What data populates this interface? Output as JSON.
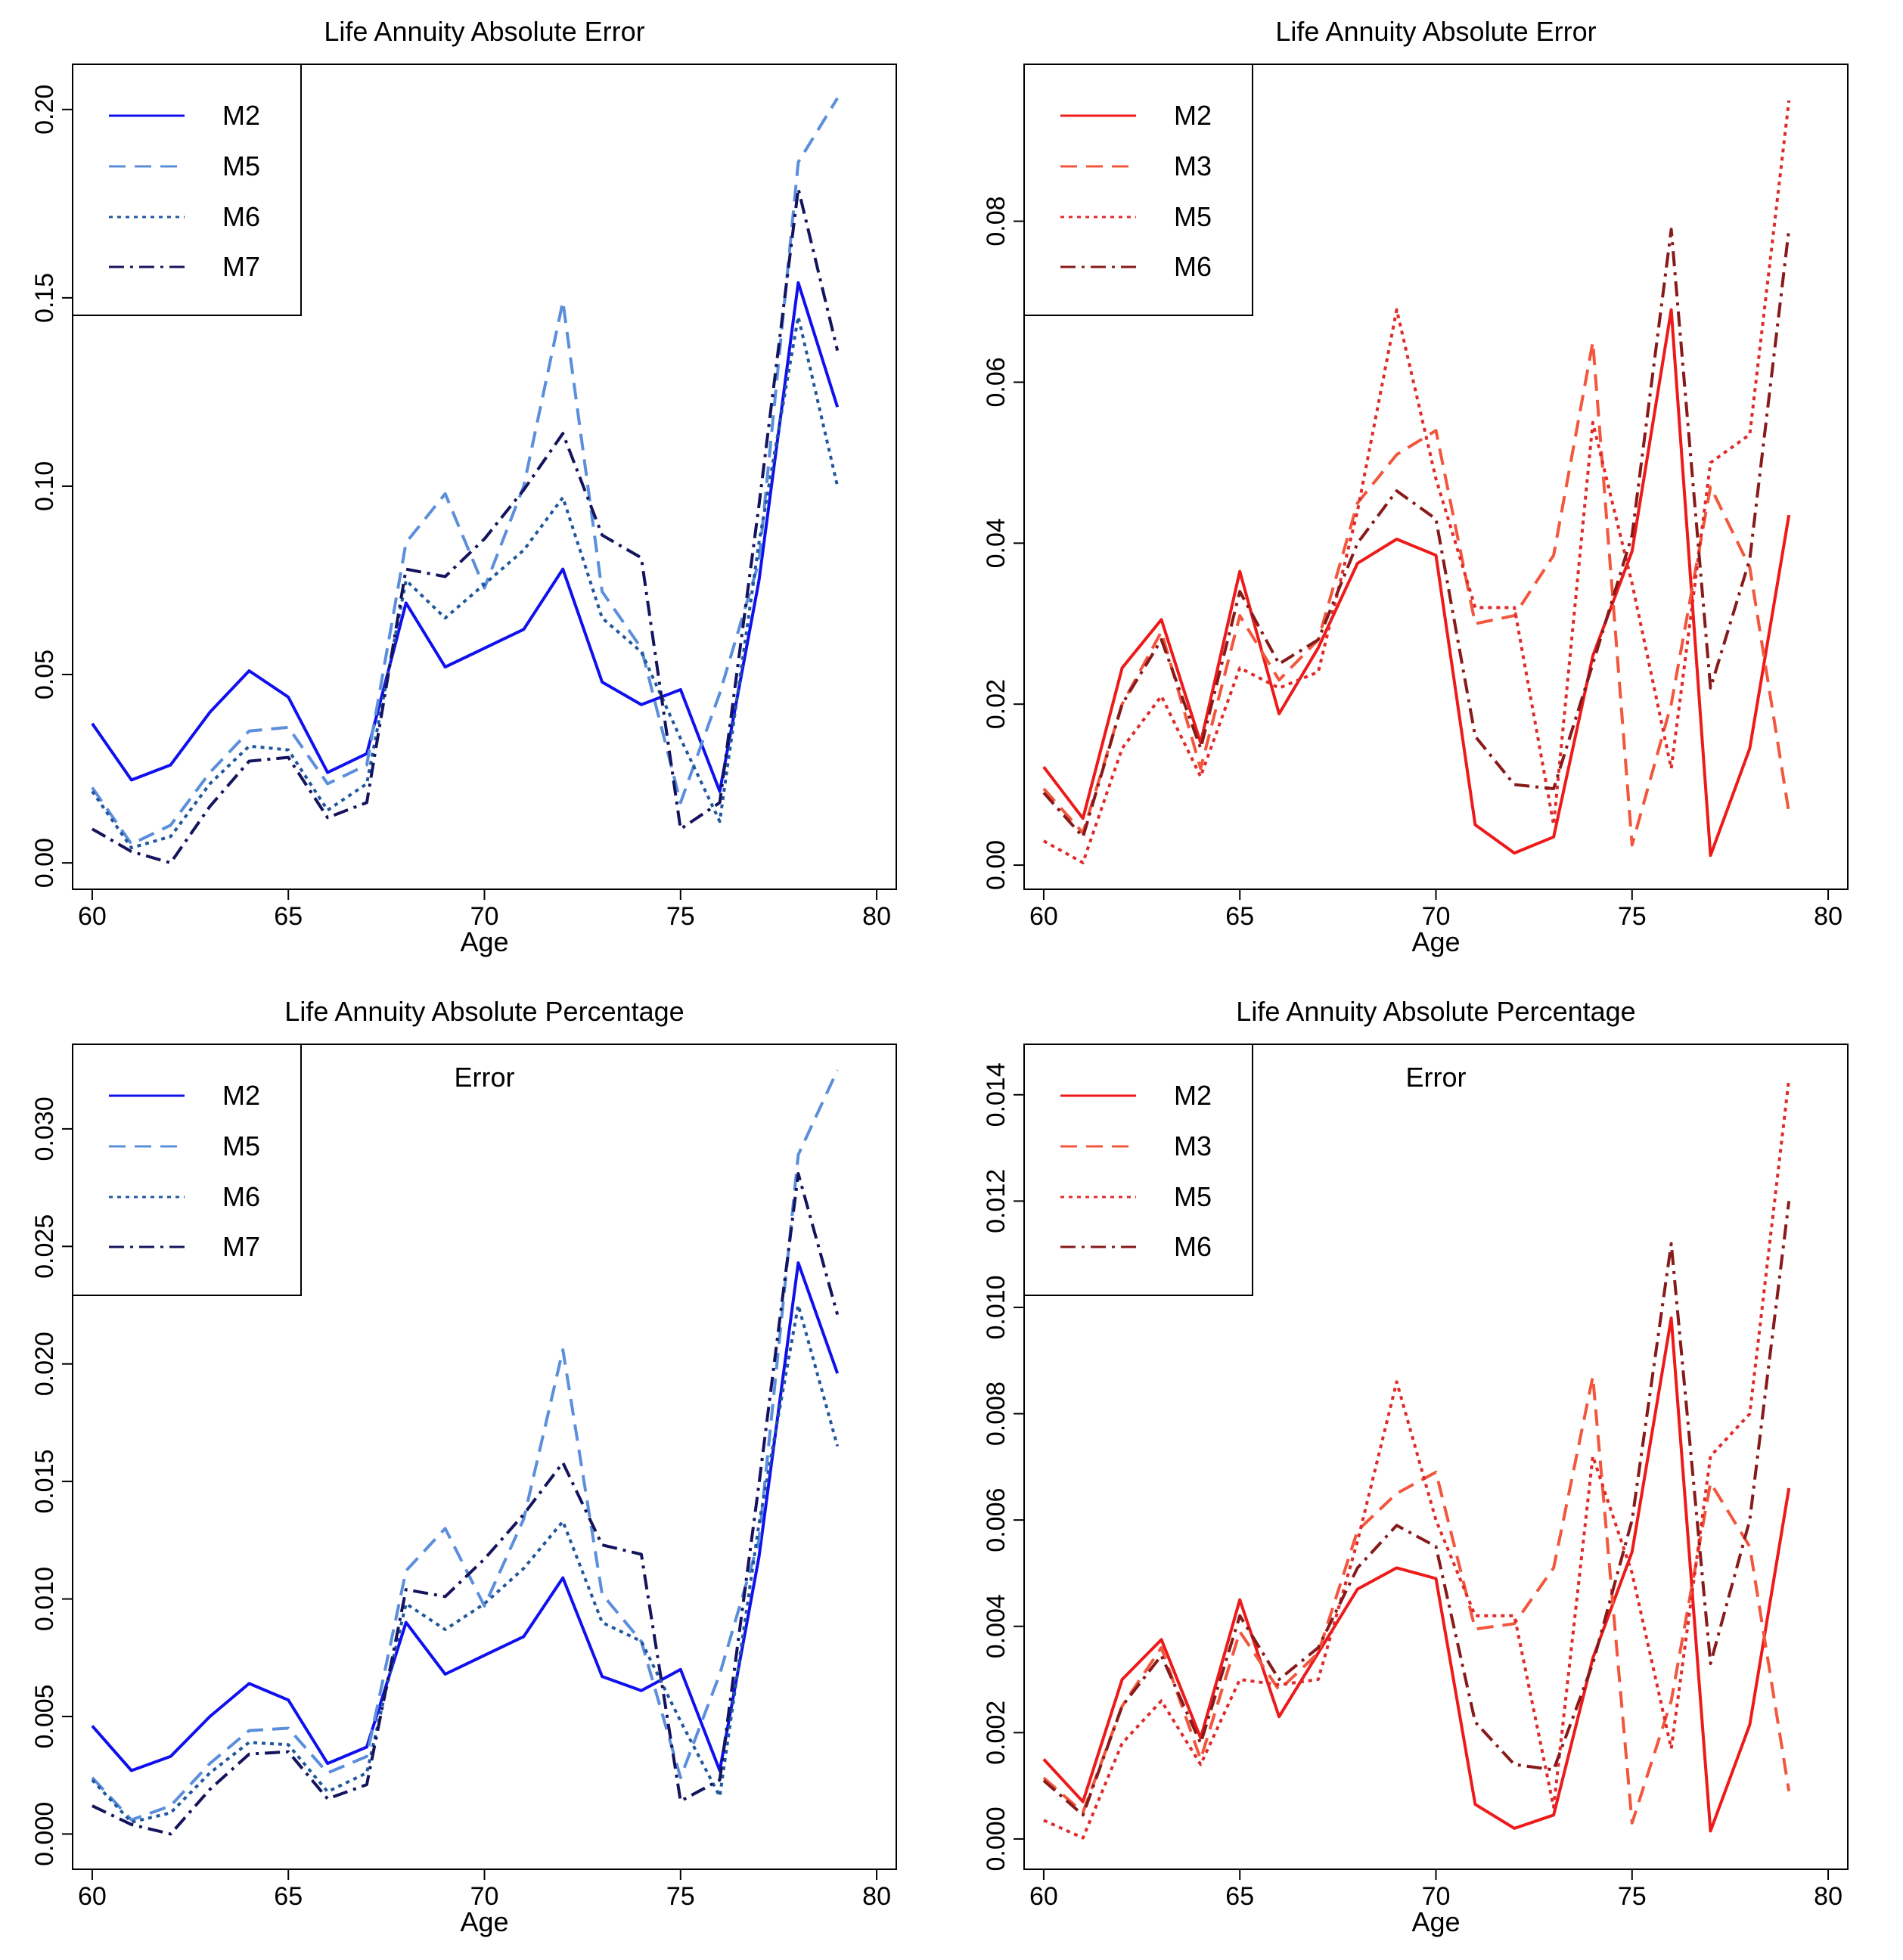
{
  "chart_data": [
    {
      "type": "line",
      "title": "Life Annuity Absolute Error",
      "subtitle": "",
      "xlabel": "Age",
      "ylabel": "",
      "xlim": [
        59.5,
        80.5
      ],
      "ylim": [
        -0.007,
        0.212
      ],
      "xticks": [
        60,
        65,
        70,
        75,
        80
      ],
      "yticks": [
        0.0,
        0.05,
        0.1,
        0.15,
        0.2
      ],
      "ytick_labels": [
        "0.00",
        "0.05",
        "0.10",
        "0.15",
        "0.20"
      ],
      "legend_position": "top-left",
      "x": [
        60,
        61,
        62,
        63,
        64,
        65,
        66,
        67,
        68,
        69,
        70,
        71,
        72,
        73,
        74,
        75,
        76,
        77,
        78,
        79
      ],
      "series": [
        {
          "name": "M2",
          "color": "#1010ee",
          "style": "solid",
          "values": [
            0.037,
            0.022,
            0.026,
            0.04,
            0.051,
            0.044,
            0.024,
            0.029,
            0.069,
            0.052,
            0.057,
            0.062,
            0.078,
            0.048,
            0.042,
            0.046,
            0.019,
            0.075,
            0.154,
            0.121
          ]
        },
        {
          "name": "M5",
          "color": "#5b8fdb",
          "style": "dashed",
          "values": [
            0.02,
            0.005,
            0.01,
            0.024,
            0.035,
            0.036,
            0.021,
            0.026,
            0.085,
            0.098,
            0.073,
            0.1,
            0.149,
            0.072,
            0.057,
            0.016,
            0.045,
            0.08,
            0.186,
            0.203
          ]
        },
        {
          "name": "M6",
          "color": "#20579c",
          "style": "dotted",
          "values": [
            0.019,
            0.004,
            0.007,
            0.021,
            0.031,
            0.03,
            0.014,
            0.021,
            0.075,
            0.065,
            0.074,
            0.083,
            0.097,
            0.065,
            0.056,
            0.033,
            0.011,
            0.085,
            0.145,
            0.1
          ]
        },
        {
          "name": "M7",
          "color": "#14145e",
          "style": "dashdot",
          "values": [
            0.009,
            0.003,
            0.0,
            0.015,
            0.027,
            0.028,
            0.012,
            0.016,
            0.078,
            0.076,
            0.086,
            0.099,
            0.114,
            0.087,
            0.081,
            0.009,
            0.016,
            0.095,
            0.179,
            0.136
          ]
        }
      ]
    },
    {
      "type": "line",
      "title": "Life Annuity Absolute Error",
      "subtitle": "",
      "xlabel": "Age",
      "ylabel": "",
      "xlim": [
        59.5,
        80.5
      ],
      "ylim": [
        -0.003,
        0.0995
      ],
      "xticks": [
        60,
        65,
        70,
        75,
        80
      ],
      "yticks": [
        0.0,
        0.02,
        0.04,
        0.06,
        0.08
      ],
      "ytick_labels": [
        "0.00",
        "0.02",
        "0.04",
        "0.06",
        "0.08"
      ],
      "legend_position": "top-left",
      "x": [
        60,
        61,
        62,
        63,
        64,
        65,
        66,
        67,
        68,
        69,
        70,
        71,
        72,
        73,
        74,
        75,
        76,
        77,
        78,
        79
      ],
      "series": [
        {
          "name": "M2",
          "color": "#ee1a1a",
          "style": "solid",
          "values": [
            0.0122,
            0.0058,
            0.0245,
            0.0305,
            0.0152,
            0.0365,
            0.0188,
            0.027,
            0.0375,
            0.0405,
            0.0385,
            0.005,
            0.0015,
            0.0035,
            0.026,
            0.039,
            0.069,
            0.0012,
            0.0145,
            0.0435
          ]
        },
        {
          "name": "M3",
          "color": "#f2573d",
          "style": "dashed",
          "values": [
            0.0095,
            0.004,
            0.02,
            0.029,
            0.012,
            0.031,
            0.023,
            0.028,
            0.045,
            0.051,
            0.054,
            0.03,
            0.031,
            0.0385,
            0.065,
            0.0025,
            0.02,
            0.047,
            0.037,
            0.0065
          ]
        },
        {
          "name": "M5",
          "color": "#e02a2a",
          "style": "dotted",
          "values": [
            0.003,
            0.0003,
            0.0145,
            0.021,
            0.011,
            0.0245,
            0.022,
            0.024,
            0.044,
            0.069,
            0.048,
            0.032,
            0.032,
            0.005,
            0.055,
            0.035,
            0.012,
            0.05,
            0.0535,
            0.095
          ]
        },
        {
          "name": "M6",
          "color": "#871a1a",
          "style": "dashdot",
          "values": [
            0.009,
            0.0035,
            0.02,
            0.028,
            0.0145,
            0.034,
            0.025,
            0.028,
            0.04,
            0.0465,
            0.043,
            0.016,
            0.01,
            0.0095,
            0.025,
            0.041,
            0.079,
            0.022,
            0.038,
            0.079
          ]
        }
      ]
    },
    {
      "type": "line",
      "title": "Life Annuity Absolute Percentage",
      "subtitle": "Error",
      "xlabel": "Age",
      "ylabel": "",
      "xlim": [
        59.5,
        80.5
      ],
      "ylim": [
        -0.0015,
        0.0336
      ],
      "xticks": [
        60,
        65,
        70,
        75,
        80
      ],
      "yticks": [
        0.0,
        0.005,
        0.01,
        0.015,
        0.02,
        0.025,
        0.03
      ],
      "ytick_labels": [
        "0.000",
        "0.005",
        "0.010",
        "0.015",
        "0.020",
        "0.025",
        "0.030"
      ],
      "legend_position": "top-left",
      "x": [
        60,
        61,
        62,
        63,
        64,
        65,
        66,
        67,
        68,
        69,
        70,
        71,
        72,
        73,
        74,
        75,
        76,
        77,
        78,
        79
      ],
      "series": [
        {
          "name": "M2",
          "color": "#1010ee",
          "style": "solid",
          "values": [
            0.0046,
            0.0027,
            0.0033,
            0.005,
            0.0064,
            0.0057,
            0.003,
            0.0037,
            0.009,
            0.0068,
            0.0076,
            0.0084,
            0.0109,
            0.0067,
            0.0061,
            0.007,
            0.0027,
            0.0118,
            0.0243,
            0.0196
          ]
        },
        {
          "name": "M5",
          "color": "#5b8fdb",
          "style": "dashed",
          "values": [
            0.0024,
            0.0006,
            0.0012,
            0.003,
            0.0044,
            0.0045,
            0.0026,
            0.0033,
            0.0112,
            0.013,
            0.0097,
            0.0134,
            0.0206,
            0.0102,
            0.0082,
            0.0024,
            0.0068,
            0.0125,
            0.0289,
            0.0325
          ]
        },
        {
          "name": "M6",
          "color": "#20579c",
          "style": "dotted",
          "values": [
            0.0023,
            0.0005,
            0.0009,
            0.0026,
            0.0039,
            0.0038,
            0.0018,
            0.0026,
            0.0098,
            0.0087,
            0.0098,
            0.0113,
            0.0133,
            0.009,
            0.0082,
            0.0048,
            0.0016,
            0.0132,
            0.0225,
            0.0165
          ]
        },
        {
          "name": "M7",
          "color": "#14145e",
          "style": "dashdot",
          "values": [
            0.0012,
            0.0004,
            0.0,
            0.0019,
            0.0034,
            0.0035,
            0.0015,
            0.0021,
            0.0104,
            0.0101,
            0.0117,
            0.0136,
            0.0158,
            0.0123,
            0.0119,
            0.0014,
            0.0023,
            0.0149,
            0.0281,
            0.0221
          ]
        }
      ]
    },
    {
      "type": "line",
      "title": "Life Annuity Absolute Percentage",
      "subtitle": "Error",
      "xlabel": "Age",
      "ylabel": "",
      "xlim": [
        59.5,
        80.5
      ],
      "ylim": [
        -0.00057,
        0.01495
      ],
      "xticks": [
        60,
        65,
        70,
        75,
        80
      ],
      "yticks": [
        0.0,
        0.002,
        0.004,
        0.006,
        0.008,
        0.01,
        0.012,
        0.014
      ],
      "ytick_labels": [
        "0.000",
        "0.002",
        "0.004",
        "0.006",
        "0.008",
        "0.010",
        "0.012",
        "0.014"
      ],
      "legend_position": "top-left",
      "x": [
        60,
        61,
        62,
        63,
        64,
        65,
        66,
        67,
        68,
        69,
        70,
        71,
        72,
        73,
        74,
        75,
        76,
        77,
        78,
        79
      ],
      "series": [
        {
          "name": "M2",
          "color": "#ee1a1a",
          "style": "solid",
          "values": [
            0.0015,
            0.0007,
            0.003,
            0.00375,
            0.0019,
            0.0045,
            0.0023,
            0.0035,
            0.0047,
            0.0051,
            0.0049,
            0.00065,
            0.0002,
            0.00045,
            0.0034,
            0.0054,
            0.0098,
            0.00015,
            0.00215,
            0.0066
          ]
        },
        {
          "name": "M3",
          "color": "#f2573d",
          "style": "dashed",
          "values": [
            0.00115,
            0.0005,
            0.0025,
            0.0036,
            0.0015,
            0.0039,
            0.0028,
            0.0035,
            0.0058,
            0.0065,
            0.0069,
            0.00395,
            0.00405,
            0.0051,
            0.0087,
            0.0003,
            0.0026,
            0.0067,
            0.0055,
            0.0009
          ]
        },
        {
          "name": "M5",
          "color": "#e02a2a",
          "style": "dotted",
          "values": [
            0.00035,
            2e-05,
            0.0018,
            0.0026,
            0.0014,
            0.003,
            0.0029,
            0.003,
            0.0056,
            0.0086,
            0.006,
            0.0042,
            0.0042,
            0.0006,
            0.0072,
            0.005,
            0.0017,
            0.0072,
            0.008,
            0.0143
          ]
        },
        {
          "name": "M6",
          "color": "#871a1a",
          "style": "dashdot",
          "values": [
            0.0011,
            0.00045,
            0.0025,
            0.00345,
            0.0018,
            0.0042,
            0.003,
            0.0036,
            0.0051,
            0.0059,
            0.0055,
            0.0022,
            0.0014,
            0.0013,
            0.0033,
            0.006,
            0.0112,
            0.0033,
            0.006,
            0.012
          ]
        }
      ]
    }
  ]
}
